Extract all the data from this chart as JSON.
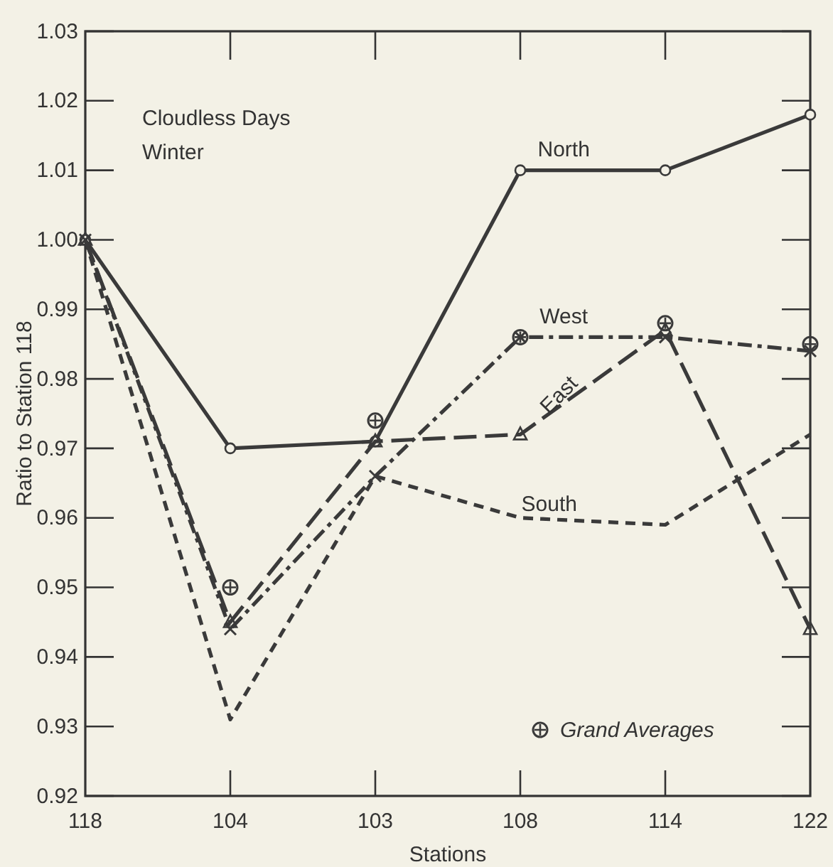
{
  "chart_data": {
    "type": "line",
    "xlabel": "Stations",
    "ylabel": "Ratio to Station 118",
    "annotations": [
      "Cloudless Days",
      "Winter"
    ],
    "categories": [
      "118",
      "104",
      "103",
      "108",
      "114",
      "122"
    ],
    "series": [
      {
        "name": "North",
        "color": "#3a3a3a",
        "marker": "circle",
        "line_style": "solid",
        "values": [
          1.0,
          0.97,
          0.971,
          1.01,
          1.01,
          1.018
        ]
      },
      {
        "name": "West",
        "color": "#3a3a3a",
        "marker": "cross",
        "line_style": "dashdot",
        "values": [
          1.0,
          0.944,
          0.966,
          0.986,
          0.986,
          0.984
        ]
      },
      {
        "name": "East",
        "color": "#3a3a3a",
        "marker": "triangle",
        "line_style": "longdash",
        "values": [
          1.0,
          0.945,
          0.971,
          0.972,
          0.987,
          0.944
        ]
      },
      {
        "name": "South",
        "color": "#3a3a3a",
        "marker": "none",
        "line_style": "dashed",
        "values": [
          1.0,
          0.931,
          0.966,
          0.96,
          0.959,
          0.972
        ]
      },
      {
        "name": "Grand Averages",
        "type": "scatter",
        "color": "#3a3a3a",
        "marker": "circle",
        "x": [
          "104",
          "103",
          "108",
          "114",
          "122"
        ],
        "values": [
          0.95,
          0.974,
          0.986,
          0.988,
          0.985
        ]
      }
    ],
    "ylim": [
      0.92,
      1.03
    ],
    "yticks": [
      0.92,
      0.93,
      0.94,
      0.95,
      0.96,
      0.97,
      0.98,
      0.99,
      {
        "value": 1.0,
        "label": "1.00"
      },
      1.01,
      1.02,
      1.03
    ],
    "grid": false,
    "legend": "bottom right"
  }
}
